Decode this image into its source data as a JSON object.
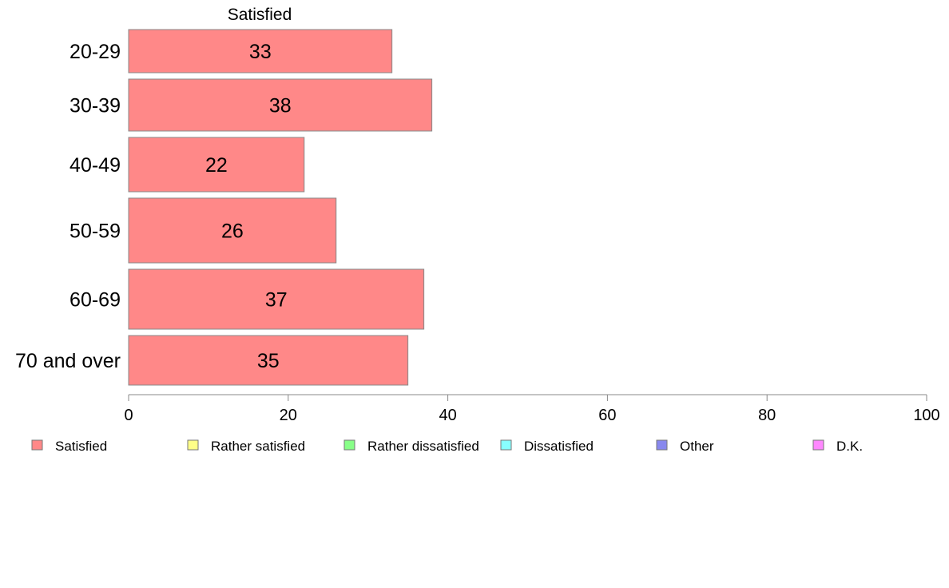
{
  "chart_data": {
    "type": "bar",
    "orientation": "horizontal",
    "stacked": true,
    "categories": [
      "20-29",
      "30-39",
      "40-49",
      "50-59",
      "60-69",
      "70 and over"
    ],
    "series": [
      {
        "name": "Satisfied",
        "values": [
          33,
          38,
          22,
          26,
          37,
          35
        ]
      }
    ],
    "series_title_shown": "Satisfied",
    "xlim": [
      0,
      100
    ],
    "xticks": [
      0,
      20,
      40,
      60,
      80,
      100
    ],
    "grid": false,
    "legend_position": "bottom",
    "legend": [
      {
        "label": "Satisfied",
        "color": "#ff8888"
      },
      {
        "label": "Rather satisfied",
        "color": "#ffff88"
      },
      {
        "label": "Rather dissatisfied",
        "color": "#88ff88"
      },
      {
        "label": "Dissatisfied",
        "color": "#88ffff"
      },
      {
        "label": "Other",
        "color": "#8888ee"
      },
      {
        "label": "D.K.",
        "color": "#ff88ff"
      }
    ],
    "bar_color": "#ff8888",
    "bar_stroke": "#888888",
    "axis_color": "#888888"
  }
}
